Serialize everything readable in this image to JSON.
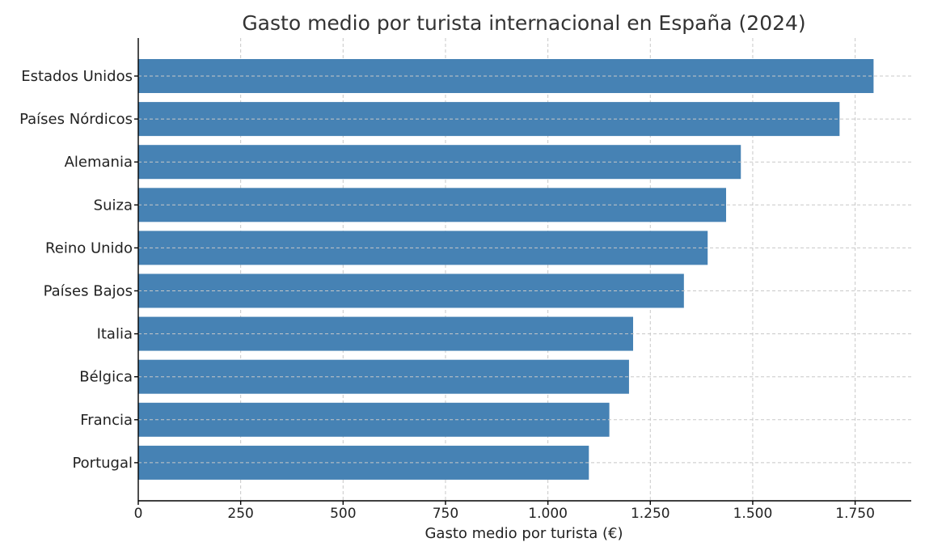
{
  "chart_data": {
    "type": "bar",
    "orientation": "horizontal",
    "title": "Gasto medio por turista internacional en España (2024)",
    "xlabel": "Gasto medio por turista (€)",
    "ylabel": "",
    "categories": [
      "Portugal",
      "Francia",
      "Bélgica",
      "Italia",
      "Países Bajos",
      "Reino Unido",
      "Suiza",
      "Alemania",
      "Países Nórdicos",
      "Estados Unidos"
    ],
    "values": [
      1100,
      1150,
      1198,
      1208,
      1332,
      1390,
      1435,
      1471,
      1712,
      1795
    ],
    "xlim": [
      0,
      1887
    ],
    "xticks": [
      0,
      250,
      500,
      750,
      1000,
      1250,
      1500,
      1750
    ],
    "xtick_labels": [
      "0",
      "250",
      "500",
      "750",
      "1.000",
      "1.250",
      "1.500",
      "1.750"
    ],
    "grid": true,
    "grid_style": "dashed",
    "bar_color": "#4682b4"
  }
}
